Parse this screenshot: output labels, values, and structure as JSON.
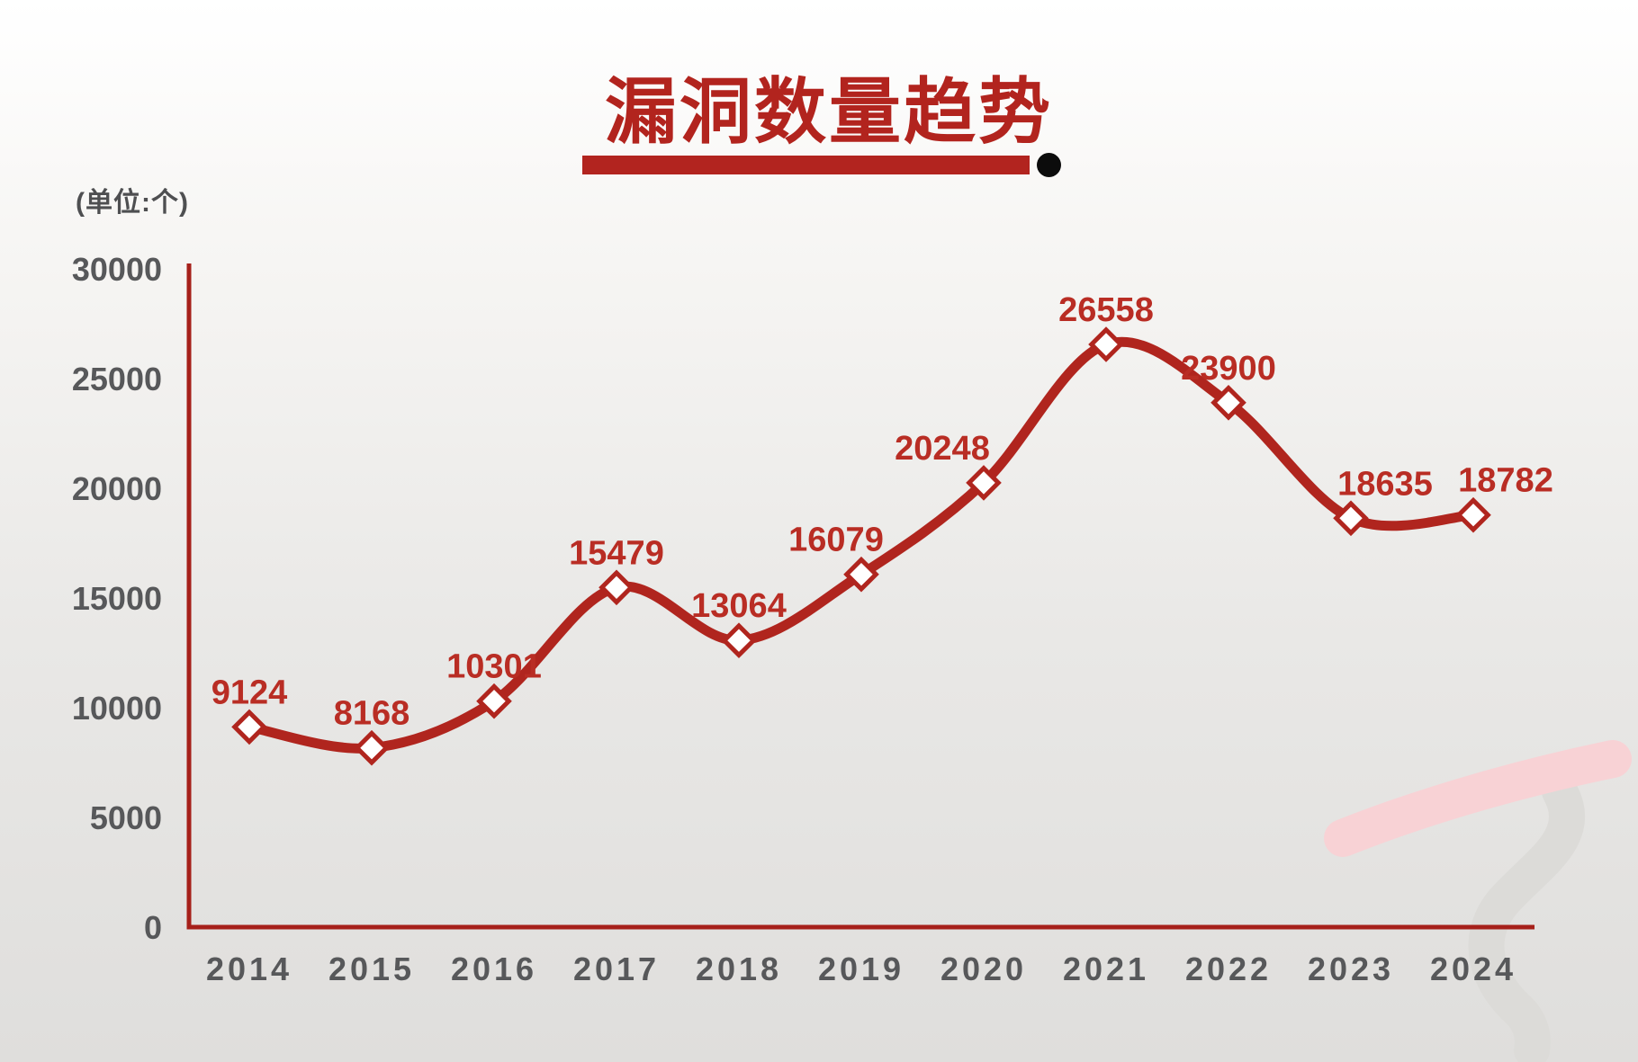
{
  "header": {
    "title": "漏洞数量趋势",
    "title_color": "#b2241e",
    "underline_color": "#b2241f",
    "dot_color": "#0c0c0c"
  },
  "unit_label": {
    "text": "(单位:个)",
    "color": "#4e4f51"
  },
  "chart_data": {
    "type": "line",
    "title": "漏洞数量趋势",
    "unit": "个",
    "categories": [
      "2014",
      "2015",
      "2016",
      "2017",
      "2018",
      "2019",
      "2020",
      "2021",
      "2022",
      "2023",
      "2024"
    ],
    "series": [
      {
        "name": "漏洞数量",
        "values": [
          9124,
          8168,
          10301,
          15479,
          13064,
          16079,
          20248,
          26558,
          23900,
          18635,
          18782
        ]
      }
    ],
    "ylim": [
      0,
      30000
    ],
    "y_ticks": [
      0,
      5000,
      10000,
      15000,
      20000,
      25000,
      30000
    ],
    "grid": false,
    "legend": "none",
    "xlabel": "",
    "ylabel": "",
    "line_color": "#b0251e",
    "marker_style": "white-diamond-red-stroke",
    "data_label_color": "#b92d24",
    "axis_color": "#a6201a",
    "tick_label_color": "#57585a",
    "label_offsets_x": [
      0,
      0,
      0,
      0,
      0,
      -28,
      -46,
      0,
      0,
      38,
      36
    ]
  },
  "decor": {
    "pink_brush_color": "#f8d2d5",
    "gray_brush_color": "#dcdbd8"
  }
}
